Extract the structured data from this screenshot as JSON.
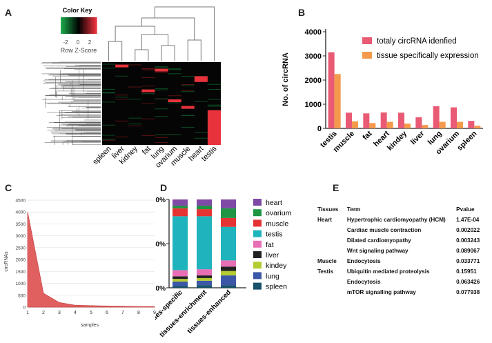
{
  "panels": {
    "a": "A",
    "b": "B",
    "c": "C",
    "d": "D",
    "e": "E"
  },
  "colors": {
    "heat_low": "#1aa84a",
    "heat_mid": "#000000",
    "heat_high": "#e8323c",
    "bar_pink": "#e95b75",
    "bar_orange": "#f39a4c",
    "area_red": "#e06060"
  },
  "chart_data": [
    {
      "id": "A",
      "type": "heatmap",
      "title": "Color Key",
      "xlabel": "Row Z-Score",
      "key_ticks": [
        "-2",
        "0",
        "2"
      ],
      "columns": [
        "spleen",
        "liver",
        "kidney",
        "fat",
        "lung",
        "ovarium",
        "muscle",
        "heart",
        "testis"
      ],
      "high_cells": [
        {
          "column": "liver",
          "rows": [
            0.03
          ]
        },
        {
          "column": "fat",
          "rows": [
            0.33
          ]
        },
        {
          "column": "lung",
          "rows": [
            0.08
          ]
        },
        {
          "column": "ovarium",
          "rows": [
            0.45
          ]
        },
        {
          "column": "muscle",
          "rows": [
            0.53
          ]
        },
        {
          "column": "heart",
          "rows": [
            0.17,
            0.19
          ]
        },
        {
          "column": "testis",
          "rows": [
            0.58,
            1.0
          ]
        }
      ]
    },
    {
      "id": "B",
      "type": "bar",
      "categories": [
        "testis",
        "muscle",
        "fat",
        "heart",
        "kindey",
        "liver",
        "lung",
        "ovarium",
        "spleen"
      ],
      "series": [
        {
          "name": "totaly circRNA idenfied",
          "values": [
            3150,
            650,
            620,
            660,
            650,
            460,
            920,
            870,
            310
          ]
        },
        {
          "name": "tissue specifically expression",
          "values": [
            2250,
            290,
            220,
            270,
            200,
            140,
            270,
            270,
            110
          ]
        }
      ],
      "ylabel": "No. of circRNA",
      "yticks": [
        0,
        1000,
        2000,
        3000,
        4000
      ],
      "ylim": [
        0,
        4000
      ],
      "legend": "top-right"
    },
    {
      "id": "C",
      "type": "area",
      "x": [
        1,
        2,
        3,
        4,
        5,
        6,
        7,
        8,
        9
      ],
      "values": [
        4000,
        580,
        190,
        80,
        60,
        45,
        35,
        25,
        20
      ],
      "xlabel": "samples",
      "ylabel": "circRNAs",
      "yticks": [
        0,
        500,
        1000,
        1500,
        2000,
        2500,
        3000,
        3500,
        4000,
        4500
      ],
      "xticks": [
        1,
        2,
        3,
        4,
        5,
        6,
        7,
        8,
        9
      ],
      "ylim": [
        0,
        4500
      ],
      "xlim": [
        1,
        9
      ]
    },
    {
      "id": "D",
      "type": "bar",
      "stacked": true,
      "categories": [
        "tissues-specific",
        "tissues-enrichment",
        "tissues-enhanced"
      ],
      "series": [
        {
          "name": "spleen",
          "color": "#17516a",
          "values": [
            2,
            3,
            3
          ]
        },
        {
          "name": "lung",
          "color": "#3c56a8",
          "values": [
            5,
            5,
            11
          ]
        },
        {
          "name": "kindey",
          "color": "#b5cb32",
          "values": [
            3,
            3,
            5
          ]
        },
        {
          "name": "liver",
          "color": "#222222",
          "values": [
            3,
            3,
            5
          ]
        },
        {
          "name": "fat",
          "color": "#e86fb4",
          "values": [
            7,
            7,
            7
          ]
        },
        {
          "name": "testis",
          "color": "#1fb3bd",
          "values": [
            61,
            60,
            38
          ]
        },
        {
          "name": "muscle",
          "color": "#e53333",
          "values": [
            9,
            8,
            10
          ]
        },
        {
          "name": "ovarium",
          "color": "#1f9445",
          "values": [
            3,
            4,
            11
          ]
        },
        {
          "name": "heart",
          "color": "#7f4aa6",
          "values": [
            7,
            7,
            10
          ]
        }
      ],
      "yticks": [
        "0%",
        "50%",
        "100%"
      ],
      "ylim": [
        0,
        100
      ],
      "legend": "right"
    },
    {
      "id": "E",
      "type": "table",
      "headers": [
        "Tissues",
        "Term",
        "Pvalue"
      ],
      "rows": [
        [
          "Heart",
          "Hypertrophic cardiomyopathy (HCM)",
          "1.47E-04"
        ],
        [
          "",
          "Cardiac muscle contraction",
          "0.002022"
        ],
        [
          "",
          "Dilated cardiomyopathy",
          "0.003243"
        ],
        [
          "",
          "Wnt signaling pathway",
          "0.089067"
        ],
        [
          "Muscle",
          "Endocytosis",
          "0.033771"
        ],
        [
          "Testis",
          "Ubiquitin mediated proteolysis",
          "0.15951"
        ],
        [
          "",
          "Endocytosis",
          "0.063426"
        ],
        [
          "",
          "mTOR signalling pathway",
          "0.077938"
        ]
      ]
    }
  ]
}
